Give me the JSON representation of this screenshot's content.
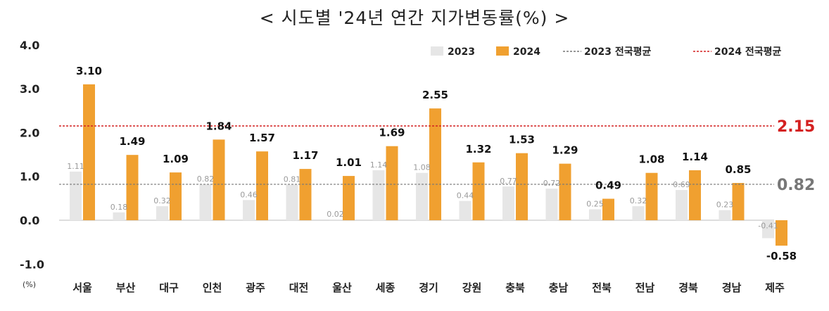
{
  "chart_data": {
    "type": "bar",
    "title": "< 시도별 '24년 연간 지가변동률(%) >",
    "unit_label": "(%)",
    "categories": [
      "서울",
      "부산",
      "대구",
      "인천",
      "광주",
      "대전",
      "울산",
      "세종",
      "경기",
      "강원",
      "충북",
      "충남",
      "전북",
      "전남",
      "경북",
      "경남",
      "제주"
    ],
    "series": [
      {
        "name": "2023",
        "color": "#e6e6e6",
        "values": [
          1.11,
          0.18,
          0.32,
          0.82,
          0.46,
          0.81,
          0.02,
          1.14,
          1.08,
          0.44,
          0.77,
          0.72,
          0.25,
          0.32,
          0.69,
          0.23,
          -0.41
        ],
        "labels": [
          "1.11",
          "0.18",
          "0.32",
          "0.82",
          "0.46",
          "0.81",
          "0.02",
          "1.14",
          "1.08",
          "0.44",
          "0.77",
          "0.72",
          "0.25",
          "0.32",
          "0.69",
          "0.23",
          "-0.41"
        ]
      },
      {
        "name": "2024",
        "color": "#f0a030",
        "values": [
          3.1,
          1.49,
          1.09,
          1.84,
          1.57,
          1.17,
          1.01,
          1.69,
          2.55,
          1.32,
          1.53,
          1.29,
          0.49,
          1.08,
          1.14,
          0.85,
          -0.58
        ],
        "labels": [
          "3.10",
          "1.49",
          "1.09",
          "1.84",
          "1.57",
          "1.17",
          "1.01",
          "1.69",
          "2.55",
          "1.32",
          "1.53",
          "1.29",
          "0.49",
          "1.08",
          "1.14",
          "0.85",
          "-0.58"
        ]
      }
    ],
    "reference_lines": [
      {
        "name": "2023 전국평균",
        "value": 0.82,
        "label": "0.82",
        "color": "#777777"
      },
      {
        "name": "2024 전국평균",
        "value": 2.15,
        "label": "2.15",
        "color": "#d42020"
      }
    ],
    "y_ticks": [
      {
        "value": 4.0,
        "label": "4.0"
      },
      {
        "value": 3.0,
        "label": "3.0"
      },
      {
        "value": 2.0,
        "label": "2.0"
      },
      {
        "value": 1.0,
        "label": "1.0"
      },
      {
        "value": 0.0,
        "label": "0.0"
      },
      {
        "value": -1.0,
        "label": "-1.0"
      }
    ],
    "ylim": [
      -1.0,
      4.0
    ],
    "legend_position": "top-right",
    "grid": false
  }
}
